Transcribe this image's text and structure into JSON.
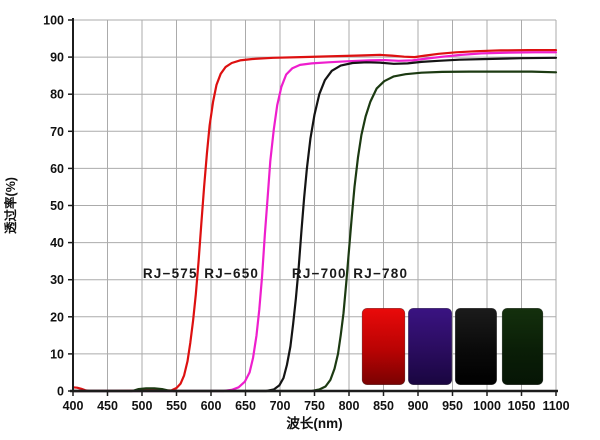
{
  "chart": {
    "background": "#ffffff",
    "grid_color": "#ababab",
    "axis_color": "#1c1c1c",
    "tick_label_color": "#111111"
  },
  "chart_data": {
    "type": "line",
    "title": "",
    "xlabel": "波长(nm)",
    "ylabel": "透过率(%)",
    "xlim": [
      400,
      1100
    ],
    "ylim": [
      0,
      100
    ],
    "x_ticks": [
      400,
      450,
      500,
      550,
      600,
      650,
      700,
      750,
      800,
      850,
      900,
      950,
      1000,
      1050,
      1100
    ],
    "y_ticks": [
      0,
      10,
      20,
      30,
      40,
      50,
      60,
      70,
      80,
      90,
      100
    ],
    "grid": true,
    "legend_position": "none",
    "series": [
      {
        "name": "RJ-575",
        "label": "RJ−575",
        "color": "#dd1010",
        "label_xy": [
          541,
          30.5
        ],
        "points": [
          [
            400,
            1
          ],
          [
            406,
            0.9
          ],
          [
            412,
            0.6
          ],
          [
            418,
            0.2
          ],
          [
            424,
            0.05
          ],
          [
            460,
            0.05
          ],
          [
            505,
            0.1
          ],
          [
            532,
            0.1
          ],
          [
            543,
            0.2
          ],
          [
            550,
            0.8
          ],
          [
            556,
            2
          ],
          [
            561,
            4.2
          ],
          [
            566,
            8
          ],
          [
            570,
            13
          ],
          [
            574,
            19
          ],
          [
            578,
            26
          ],
          [
            582,
            35
          ],
          [
            586,
            45
          ],
          [
            590,
            55
          ],
          [
            594,
            64
          ],
          [
            598,
            71.5
          ],
          [
            603,
            78
          ],
          [
            608,
            82.5
          ],
          [
            614,
            85.5
          ],
          [
            621,
            87.3
          ],
          [
            630,
            88.4
          ],
          [
            642,
            89.1
          ],
          [
            660,
            89.5
          ],
          [
            690,
            89.8
          ],
          [
            730,
            90
          ],
          [
            770,
            90.2
          ],
          [
            810,
            90.4
          ],
          [
            845,
            90.6
          ],
          [
            862,
            90.4
          ],
          [
            880,
            90.1
          ],
          [
            895,
            90
          ],
          [
            910,
            90.4
          ],
          [
            930,
            90.9
          ],
          [
            955,
            91.3
          ],
          [
            985,
            91.6
          ],
          [
            1020,
            91.8
          ],
          [
            1060,
            91.9
          ],
          [
            1100,
            91.9
          ]
        ]
      },
      {
        "name": "RJ-650",
        "label": "RJ−650",
        "color": "#ee1ecd",
        "label_xy": [
          630,
          30.5
        ],
        "points": [
          [
            400,
            0
          ],
          [
            618,
            0
          ],
          [
            630,
            0.3
          ],
          [
            640,
            1
          ],
          [
            649,
            2.5
          ],
          [
            656,
            5
          ],
          [
            661,
            9
          ],
          [
            666,
            15
          ],
          [
            670,
            22
          ],
          [
            674,
            31
          ],
          [
            678,
            42
          ],
          [
            682,
            52
          ],
          [
            686,
            62
          ],
          [
            691,
            70.5
          ],
          [
            696,
            77
          ],
          [
            702,
            82
          ],
          [
            709,
            85.3
          ],
          [
            718,
            87
          ],
          [
            729,
            87.9
          ],
          [
            746,
            88.3
          ],
          [
            770,
            88.6
          ],
          [
            800,
            88.9
          ],
          [
            830,
            89.1
          ],
          [
            852,
            89.2
          ],
          [
            872,
            89
          ],
          [
            892,
            89.1
          ],
          [
            912,
            89.6
          ],
          [
            936,
            90.1
          ],
          [
            962,
            90.6
          ],
          [
            992,
            91
          ],
          [
            1032,
            91.2
          ],
          [
            1070,
            91.3
          ],
          [
            1100,
            91.3
          ]
        ]
      },
      {
        "name": "RJ-700",
        "label": "RJ−700",
        "color": "#141414",
        "label_xy": [
          757,
          30.5
        ],
        "points": [
          [
            400,
            0
          ],
          [
            680,
            0
          ],
          [
            691,
            0.4
          ],
          [
            699,
            1.5
          ],
          [
            705,
            3.5
          ],
          [
            710,
            7
          ],
          [
            715,
            12
          ],
          [
            719,
            18
          ],
          [
            723,
            25
          ],
          [
            727,
            33
          ],
          [
            731,
            43
          ],
          [
            735,
            52
          ],
          [
            739,
            60
          ],
          [
            744,
            68
          ],
          [
            750,
            74.5
          ],
          [
            757,
            80
          ],
          [
            765,
            83.8
          ],
          [
            775,
            86.3
          ],
          [
            788,
            87.7
          ],
          [
            805,
            88.4
          ],
          [
            825,
            88.6
          ],
          [
            845,
            88.5
          ],
          [
            865,
            88.2
          ],
          [
            885,
            88.3
          ],
          [
            905,
            88.7
          ],
          [
            930,
            89
          ],
          [
            960,
            89.3
          ],
          [
            1000,
            89.5
          ],
          [
            1050,
            89.7
          ],
          [
            1100,
            89.8
          ]
        ]
      },
      {
        "name": "RJ-780",
        "label": "RJ−780",
        "color": "#1c3a12",
        "label_xy": [
          846,
          30.5
        ],
        "points": [
          [
            400,
            0
          ],
          [
            486,
            0
          ],
          [
            495,
            0.5
          ],
          [
            506,
            0.7
          ],
          [
            518,
            0.7
          ],
          [
            529,
            0.5
          ],
          [
            537,
            0.2
          ],
          [
            546,
            0
          ],
          [
            746,
            0
          ],
          [
            757,
            0.4
          ],
          [
            766,
            1.2
          ],
          [
            773,
            3
          ],
          [
            779,
            6
          ],
          [
            784,
            10
          ],
          [
            788,
            15
          ],
          [
            792,
            21
          ],
          [
            796,
            29
          ],
          [
            800,
            38
          ],
          [
            804,
            47
          ],
          [
            808,
            55
          ],
          [
            813,
            63
          ],
          [
            818,
            69
          ],
          [
            824,
            74
          ],
          [
            831,
            78
          ],
          [
            840,
            81.5
          ],
          [
            851,
            83.5
          ],
          [
            865,
            84.8
          ],
          [
            882,
            85.4
          ],
          [
            905,
            85.8
          ],
          [
            935,
            86
          ],
          [
            975,
            86.1
          ],
          [
            1020,
            86.1
          ],
          [
            1065,
            86.1
          ],
          [
            1100,
            85.9
          ]
        ]
      }
    ],
    "filter_swatches": [
      {
        "name": "RJ-575-filter-sample",
        "x_range": [
          819,
          881
        ],
        "y_range": [
          1.7,
          22.3
        ],
        "gradient": [
          "#ea0a0a",
          "#b80303",
          "#7a0202"
        ]
      },
      {
        "name": "RJ-650-filter-sample",
        "x_range": [
          886,
          949
        ],
        "y_range": [
          1.7,
          22.3
        ],
        "gradient": [
          "#3a1382",
          "#2a0c5e",
          "#190640"
        ]
      },
      {
        "name": "RJ-700-filter-sample",
        "x_range": [
          954,
          1014
        ],
        "y_range": [
          1.7,
          22.3
        ],
        "gradient": [
          "#1b1b1b",
          "#0a0a0a",
          "#000000"
        ]
      },
      {
        "name": "RJ-780-filter-sample",
        "x_range": [
          1022,
          1081
        ],
        "y_range": [
          1.7,
          22.3
        ],
        "gradient": [
          "#14300d",
          "#0a1e07",
          "#061505"
        ]
      }
    ]
  }
}
